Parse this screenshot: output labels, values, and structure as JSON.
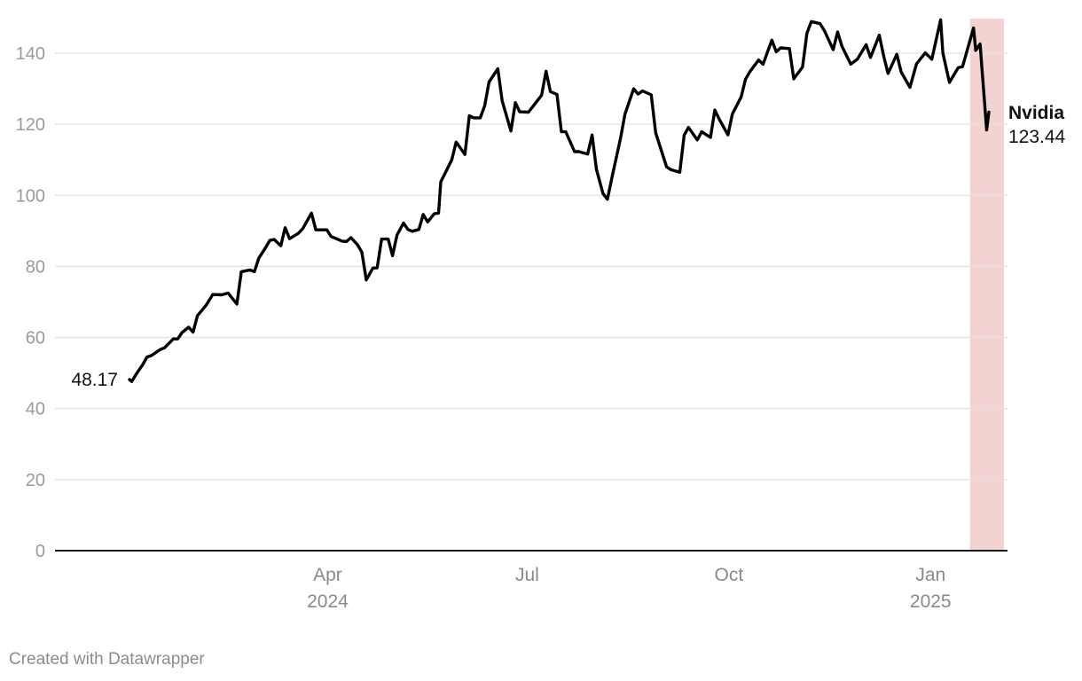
{
  "footer": "Created with Datawrapper",
  "chart_data": {
    "type": "line",
    "title": "",
    "xlabel": "",
    "ylabel": "",
    "ylim": [
      0,
      150
    ],
    "yticks": [
      0,
      20,
      40,
      60,
      80,
      100,
      120,
      140
    ],
    "xlim": [
      "2023-12-11",
      "2025-01-31"
    ],
    "xticks": [
      {
        "date": "2024-04-01",
        "label": "Apr",
        "sublabel": "2024"
      },
      {
        "date": "2024-07-01",
        "label": "Jul",
        "sublabel": ""
      },
      {
        "date": "2024-10-01",
        "label": "Oct",
        "sublabel": ""
      },
      {
        "date": "2025-01-01",
        "label": "Jan",
        "sublabel": "2025"
      }
    ],
    "grid": true,
    "highlight_band": {
      "start": "2025-01-21",
      "end": "2025-01-31",
      "color": "#f3d3d2"
    },
    "line_color": "#000000",
    "start_label": "48.17",
    "end_label": {
      "name": "Nvidia",
      "value": "123.44"
    },
    "series": [
      {
        "name": "Nvidia",
        "x": [
          "2024-01-02",
          "2024-01-03",
          "2024-01-05",
          "2024-01-08",
          "2024-01-10",
          "2024-01-12",
          "2024-01-16",
          "2024-01-18",
          "2024-01-22",
          "2024-01-24",
          "2024-01-26",
          "2024-01-29",
          "2024-01-31",
          "2024-02-02",
          "2024-02-06",
          "2024-02-09",
          "2024-02-13",
          "2024-02-16",
          "2024-02-20",
          "2024-02-22",
          "2024-02-26",
          "2024-02-28",
          "2024-03-01",
          "2024-03-04",
          "2024-03-06",
          "2024-03-08",
          "2024-03-11",
          "2024-03-13",
          "2024-03-15",
          "2024-03-19",
          "2024-03-21",
          "2024-03-25",
          "2024-03-27",
          "2024-04-01",
          "2024-04-03",
          "2024-04-05",
          "2024-04-08",
          "2024-04-10",
          "2024-04-12",
          "2024-04-15",
          "2024-04-17",
          "2024-04-19",
          "2024-04-22",
          "2024-04-24",
          "2024-04-26",
          "2024-04-29",
          "2024-05-01",
          "2024-05-03",
          "2024-05-06",
          "2024-05-08",
          "2024-05-10",
          "2024-05-13",
          "2024-05-15",
          "2024-05-17",
          "2024-05-20",
          "2024-05-22",
          "2024-05-23",
          "2024-05-28",
          "2024-05-30",
          "2024-06-03",
          "2024-06-05",
          "2024-06-07",
          "2024-06-10",
          "2024-06-12",
          "2024-06-14",
          "2024-06-18",
          "2024-06-20",
          "2024-06-24",
          "2024-06-26",
          "2024-06-28",
          "2024-07-02",
          "2024-07-05",
          "2024-07-08",
          "2024-07-10",
          "2024-07-12",
          "2024-07-15",
          "2024-07-17",
          "2024-07-19",
          "2024-07-23",
          "2024-07-25",
          "2024-07-29",
          "2024-07-31",
          "2024-08-02",
          "2024-08-05",
          "2024-08-07",
          "2024-08-09",
          "2024-08-13",
          "2024-08-15",
          "2024-08-19",
          "2024-08-21",
          "2024-08-23",
          "2024-08-27",
          "2024-08-29",
          "2024-09-03",
          "2024-09-05",
          "2024-09-09",
          "2024-09-11",
          "2024-09-13",
          "2024-09-17",
          "2024-09-19",
          "2024-09-23",
          "2024-09-25",
          "2024-09-27",
          "2024-10-01",
          "2024-10-03",
          "2024-10-07",
          "2024-10-09",
          "2024-10-11",
          "2024-10-15",
          "2024-10-17",
          "2024-10-21",
          "2024-10-23",
          "2024-10-25",
          "2024-10-29",
          "2024-10-31",
          "2024-11-04",
          "2024-11-06",
          "2024-11-08",
          "2024-11-12",
          "2024-11-14",
          "2024-11-18",
          "2024-11-20",
          "2024-11-22",
          "2024-11-26",
          "2024-11-29",
          "2024-12-03",
          "2024-12-05",
          "2024-12-09",
          "2024-12-11",
          "2024-12-13",
          "2024-12-17",
          "2024-12-19",
          "2024-12-23",
          "2024-12-26",
          "2024-12-30",
          "2025-01-02",
          "2025-01-06",
          "2025-01-07",
          "2025-01-10",
          "2025-01-14",
          "2025-01-16",
          "2025-01-21",
          "2025-01-22",
          "2025-01-24",
          "2025-01-27",
          "2025-01-28"
        ],
        "values": [
          48.17,
          47.6,
          49.6,
          52.3,
          54.5,
          54.9,
          56.6,
          57.1,
          59.6,
          59.6,
          61.4,
          62.9,
          61.5,
          66.1,
          69.1,
          72.1,
          72.0,
          72.5,
          69.4,
          78.5,
          79.0,
          78.5,
          82.3,
          85.2,
          87.3,
          87.6,
          85.8,
          90.9,
          87.8,
          89.3,
          90.6,
          95.0,
          90.3,
          90.3,
          88.4,
          87.9,
          87.1,
          87.0,
          88.1,
          86.1,
          84.0,
          76.2,
          79.5,
          79.6,
          87.7,
          87.7,
          83.0,
          88.8,
          92.2,
          90.4,
          89.9,
          90.4,
          94.6,
          92.5,
          94.8,
          95.0,
          103.8,
          110.0,
          115.0,
          111.5,
          122.4,
          121.8,
          121.8,
          125.2,
          131.9,
          135.6,
          126.6,
          118.1,
          126.1,
          123.5,
          123.4,
          125.8,
          128.2,
          134.9,
          129.2,
          128.4,
          117.9,
          117.9,
          112.3,
          112.3,
          111.6,
          117.0,
          107.3,
          100.5,
          98.9,
          104.8,
          116.1,
          122.9,
          130.0,
          128.5,
          129.4,
          128.3,
          117.6,
          108.0,
          107.2,
          106.5,
          116.9,
          119.1,
          115.6,
          117.9,
          116.3,
          124.0,
          121.4,
          117.0,
          122.9,
          127.7,
          132.7,
          134.8,
          138.1,
          136.9,
          143.7,
          140.4,
          141.5,
          141.3,
          132.8,
          136.1,
          145.6,
          148.9,
          148.3,
          146.3,
          141.0,
          146.0,
          141.9,
          136.9,
          138.3,
          142.4,
          138.8,
          145.1,
          139.3,
          134.3,
          139.7,
          134.7,
          130.4,
          137.0,
          140.1,
          138.3,
          149.4,
          140.1,
          131.8,
          135.9,
          136.2,
          147.1,
          140.8,
          142.6,
          118.4,
          123.44
        ]
      }
    ]
  }
}
